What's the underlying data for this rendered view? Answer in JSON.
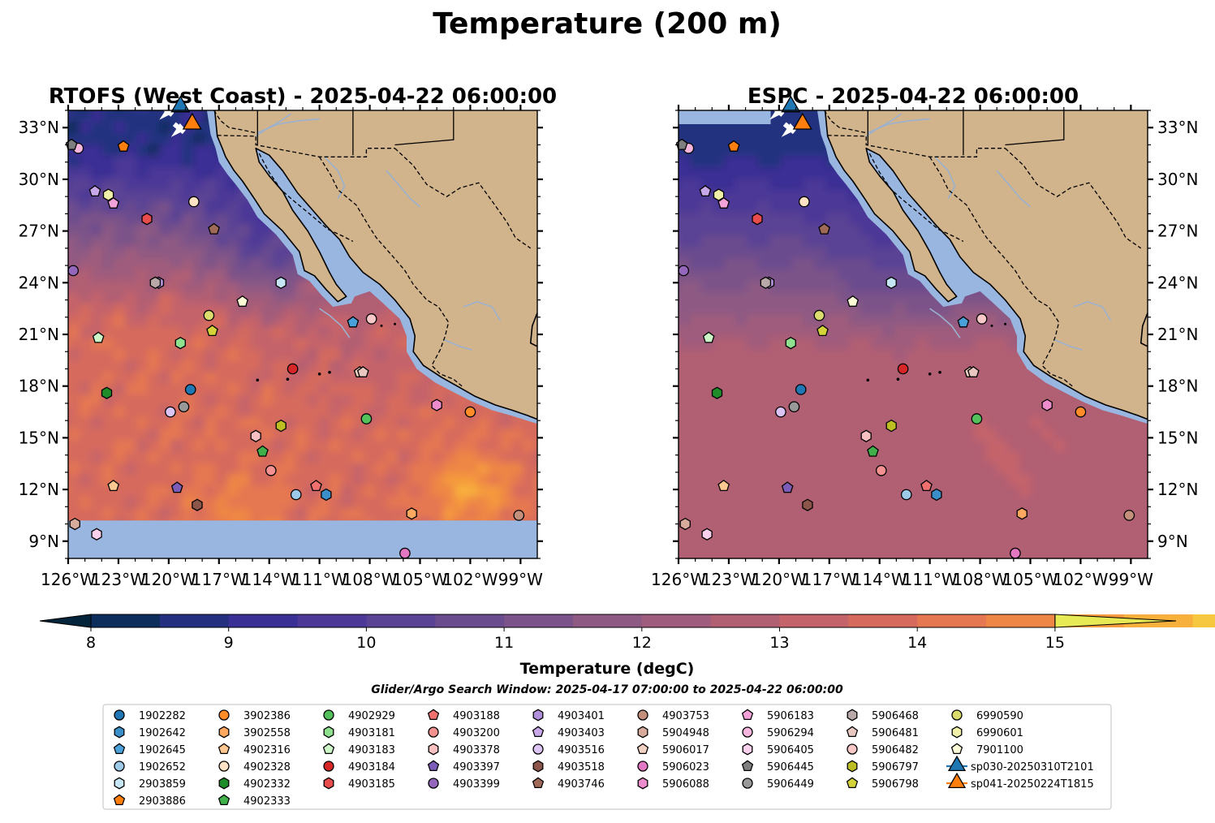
{
  "figure": {
    "suptitle": "Temperature (200 m)",
    "colorbar_label": "Temperature (degC)",
    "search_window": "Glider/Argo Search Window: 2025-04-17 07:00:00 to 2025-04-22 06:00:00"
  },
  "colors": {
    "land": "#d2b48c",
    "shelf_water": "#99b6e0",
    "coast_line": "#000000",
    "river": "#9ab1cf",
    "glider_sp030": "#1f77b4",
    "glider_sp041": "#ff7f0e"
  },
  "colorbar": {
    "ticks": [
      "8",
      "9",
      "10",
      "11",
      "12",
      "13",
      "14",
      "15"
    ],
    "range": [
      7.5,
      15.5
    ],
    "step": 0.5,
    "extend": "both",
    "band_colors": [
      "#04243b",
      "#0d2d5c",
      "#24307f",
      "#3a2f94",
      "#4c3997",
      "#5a4294",
      "#6a4b8e",
      "#7b5289",
      "#8e5a83",
      "#a05c7c",
      "#b15f73",
      "#c5636a",
      "#d66b5d",
      "#e57751",
      "#ee8645",
      "#f59a3d",
      "#f8b03c",
      "#f6c83f",
      "#e8ea55"
    ]
  },
  "chart_data": [
    {
      "type": "heatmap",
      "title": "RTOFS (West Coast) - 2025-04-22 06:00:00",
      "xlim": [
        -126,
        -98
      ],
      "ylim": [
        8,
        34
      ],
      "xticks": [
        "126°W",
        "123°W",
        "120°W",
        "117°W",
        "114°W",
        "111°W",
        "108°W",
        "105°W",
        "102°W",
        "99°W"
      ],
      "yticks": [
        "9°N",
        "12°N",
        "15°N",
        "18°N",
        "21°N",
        "24°N",
        "27°N",
        "30°N",
        "33°N"
      ],
      "no_data_below_lat": 10.2
    },
    {
      "type": "heatmap",
      "title": "ESPC - 2025-04-22 06:00:00",
      "xlim": [
        -126,
        -98
      ],
      "ylim": [
        8,
        34
      ],
      "xticks": [
        "126°W",
        "123°W",
        "120°W",
        "117°W",
        "114°W",
        "111°W",
        "108°W",
        "105°W",
        "102°W",
        "99°W"
      ],
      "yticks": [
        "9°N",
        "12°N",
        "15°N",
        "18°N",
        "21°N",
        "24°N",
        "27°N",
        "30°N",
        "33°N"
      ]
    }
  ],
  "platforms": [
    {
      "id": "1902282",
      "marker": "circle",
      "color": "#1f77b4",
      "lon": -118.7,
      "lat": 17.8
    },
    {
      "id": "1902642",
      "marker": "hexagon",
      "color": "#3a8fc9",
      "lon": -110.6,
      "lat": 11.7
    },
    {
      "id": "1902645",
      "marker": "pentagon",
      "color": "#4aa0d8",
      "lon": -109.0,
      "lat": 21.7
    },
    {
      "id": "1902652",
      "marker": "circle",
      "color": "#9ecae9",
      "lon": -112.4,
      "lat": 11.7
    },
    {
      "id": "2903859",
      "marker": "hexagon",
      "color": "#c6e5f5",
      "lon": -113.3,
      "lat": 24.0
    },
    {
      "id": "2903886",
      "marker": "pentagon",
      "color": "#ff7f0e",
      "lon": -122.7,
      "lat": 31.9
    },
    {
      "id": "3902386",
      "marker": "circle",
      "color": "#ff8c28",
      "lon": -102.0,
      "lat": 16.5
    },
    {
      "id": "3902558",
      "marker": "hexagon",
      "color": "#ffa860",
      "lon": -105.5,
      "lat": 10.6
    },
    {
      "id": "4902316",
      "marker": "pentagon",
      "color": "#ffc890",
      "lon": -123.3,
      "lat": 12.2
    },
    {
      "id": "4902328",
      "marker": "circle",
      "color": "#ffe3c4",
      "lon": -118.5,
      "lat": 28.7
    },
    {
      "id": "4902332",
      "marker": "hexagon",
      "color": "#1f8c2a",
      "lon": -123.7,
      "lat": 17.6
    },
    {
      "id": "4902333",
      "marker": "pentagon",
      "color": "#3fb04a",
      "lon": -114.4,
      "lat": 14.2
    },
    {
      "id": "4902929",
      "marker": "circle",
      "color": "#54c05c",
      "lon": -108.2,
      "lat": 16.1
    },
    {
      "id": "4903181",
      "marker": "hexagon",
      "color": "#8fe08f",
      "lon": -119.3,
      "lat": 20.5
    },
    {
      "id": "4903183",
      "marker": "pentagon",
      "color": "#ccf5c8",
      "lon": -124.2,
      "lat": 20.8
    },
    {
      "id": "4903184",
      "marker": "circle",
      "color": "#d62728",
      "lon": -112.6,
      "lat": 19.0
    },
    {
      "id": "4903185",
      "marker": "hexagon",
      "color": "#e84c4c",
      "lon": -121.3,
      "lat": 27.7
    },
    {
      "id": "4903188",
      "marker": "pentagon",
      "color": "#f07070",
      "lon": -111.2,
      "lat": 12.2
    },
    {
      "id": "4903200",
      "marker": "circle",
      "color": "#f49090",
      "lon": -113.9,
      "lat": 13.1
    },
    {
      "id": "4903378",
      "marker": "hexagon",
      "color": "#f8c0c0",
      "lon": -114.8,
      "lat": 15.1
    },
    {
      "id": "4903397",
      "marker": "pentagon",
      "color": "#7b5cb8",
      "lon": -119.5,
      "lat": 12.1
    },
    {
      "id": "4903399",
      "marker": "circle",
      "color": "#9467bd",
      "lon": -125.7,
      "lat": 24.7
    },
    {
      "id": "4903401",
      "marker": "hexagon",
      "color": "#b090d8",
      "lon": -120.6,
      "lat": 24.0
    },
    {
      "id": "4903403",
      "marker": "pentagon",
      "color": "#c8a8e8",
      "lon": -124.4,
      "lat": 29.3
    },
    {
      "id": "4903516",
      "marker": "circle",
      "color": "#dcc4f4",
      "lon": -119.9,
      "lat": 16.5
    },
    {
      "id": "4903518",
      "marker": "hexagon",
      "color": "#8c564b",
      "lon": -118.3,
      "lat": 11.1
    },
    {
      "id": "4903746",
      "marker": "pentagon",
      "color": "#a06a58",
      "lon": -117.3,
      "lat": 27.1
    },
    {
      "id": "4903753",
      "marker": "circle",
      "color": "#c4907c",
      "lon": -99.1,
      "lat": 10.5
    },
    {
      "id": "5904948",
      "marker": "hexagon",
      "color": "#d8ac9c",
      "lon": -125.6,
      "lat": 10.0
    },
    {
      "id": "5906017",
      "marker": "pentagon",
      "color": "#f2d2c2",
      "lon": -108.6,
      "lat": 18.8
    },
    {
      "id": "5906023",
      "marker": "circle",
      "color": "#e377c2",
      "lon": -105.9,
      "lat": 8.3
    },
    {
      "id": "5906088",
      "marker": "hexagon",
      "color": "#ec8ccc",
      "lon": -104.0,
      "lat": 16.9
    },
    {
      "id": "5906183",
      "marker": "pentagon",
      "color": "#f3a2d9",
      "lon": -123.3,
      "lat": 28.6
    },
    {
      "id": "5906294",
      "marker": "circle",
      "color": "#f7b6dd",
      "lon": -125.4,
      "lat": 31.8
    },
    {
      "id": "5906405",
      "marker": "hexagon",
      "color": "#fbd0ec",
      "lon": -124.3,
      "lat": 9.4
    },
    {
      "id": "5906445",
      "marker": "pentagon",
      "color": "#7f7f7f",
      "lon": -125.8,
      "lat": 32.0
    },
    {
      "id": "5906449",
      "marker": "circle",
      "color": "#999999",
      "lon": -119.1,
      "lat": 16.8
    },
    {
      "id": "5906468",
      "marker": "hexagon",
      "color": "#b8a8a8",
      "lon": -120.8,
      "lat": 24.0
    },
    {
      "id": "5906481",
      "marker": "pentagon",
      "color": "#e8c8c0",
      "lon": -108.4,
      "lat": 18.8
    },
    {
      "id": "5906482",
      "marker": "circle",
      "color": "#f8c8c8",
      "lon": -107.9,
      "lat": 21.9
    },
    {
      "id": "5906797",
      "marker": "hexagon",
      "color": "#bcbd22",
      "lon": -113.3,
      "lat": 15.7
    },
    {
      "id": "5906798",
      "marker": "pentagon",
      "color": "#d4d43a",
      "lon": -117.4,
      "lat": 21.2
    },
    {
      "id": "6990590",
      "marker": "circle",
      "color": "#dbdb6e",
      "lon": -117.6,
      "lat": 22.1
    },
    {
      "id": "6990601",
      "marker": "hexagon",
      "color": "#f0f0a8",
      "lon": -123.6,
      "lat": 29.1
    },
    {
      "id": "7901100",
      "marker": "pentagon",
      "color": "#fbfbd8",
      "lon": -115.6,
      "lat": 22.9
    }
  ],
  "gliders": [
    {
      "id": "sp030-20250310T2101",
      "marker": "triangle",
      "color": "#1f77b4",
      "lon": -119.3,
      "lat": 34.3,
      "heading": "southeast"
    },
    {
      "id": "sp041-20250224T1815",
      "marker": "triangle",
      "color": "#ff7f0e",
      "lon": -118.6,
      "lat": 33.3,
      "heading": "southeast"
    }
  ]
}
